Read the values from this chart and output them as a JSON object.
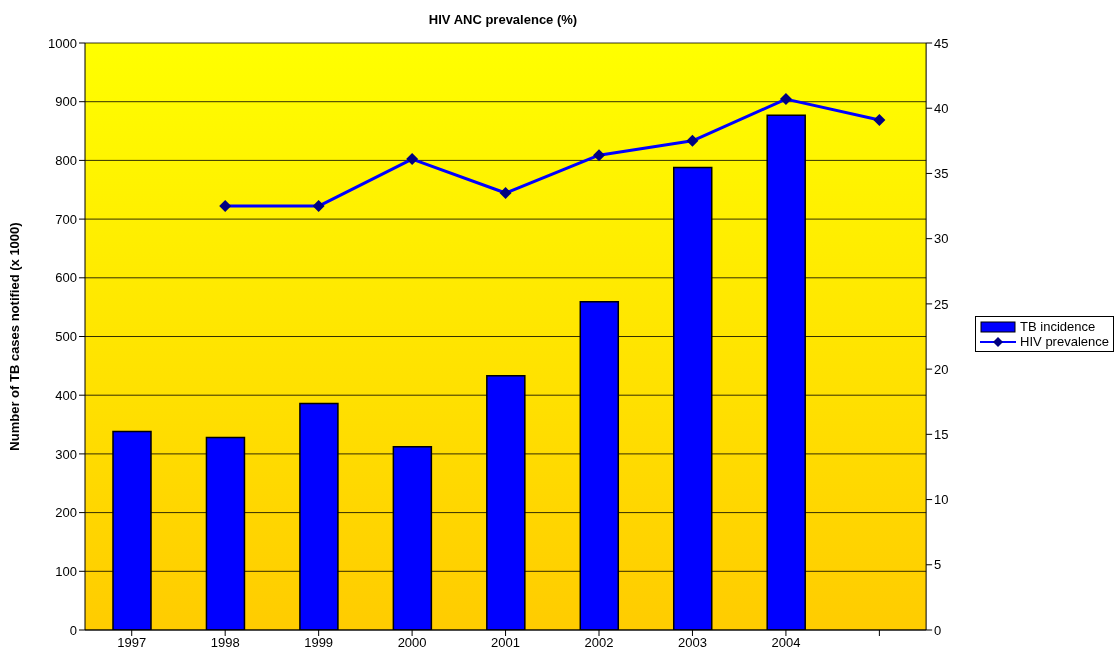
{
  "chart_data": {
    "type": "bar",
    "title": "HIV ANC prevalence (%)",
    "ylabel": "Number of TB cases notified (x 1000)",
    "categories": [
      "1997",
      "1998",
      "1999",
      "2000",
      "2001",
      "2002",
      "2003",
      "2004",
      null
    ],
    "series": [
      {
        "name": "TB incidence",
        "color": "#0000ff",
        "values": [
          338,
          328,
          386,
          312,
          433,
          559,
          788,
          877,
          null
        ]
      },
      {
        "name": "HIV prevalence",
        "type": "line",
        "axis": "y2",
        "color": "#0000ff",
        "marker": "diamond",
        "values": [
          null,
          32.5,
          32.5,
          36.1,
          33.5,
          36.4,
          37.5,
          40.7,
          39.1
        ]
      }
    ],
    "ylim": [
      0,
      1000
    ],
    "yticks": [
      0,
      100,
      200,
      300,
      400,
      500,
      600,
      700,
      800,
      900,
      1000
    ],
    "y2lim": [
      0,
      45
    ],
    "y2ticks": [
      0,
      5,
      10,
      15,
      20,
      25,
      30,
      35,
      40,
      45
    ],
    "grid": "y",
    "legend": "right"
  }
}
